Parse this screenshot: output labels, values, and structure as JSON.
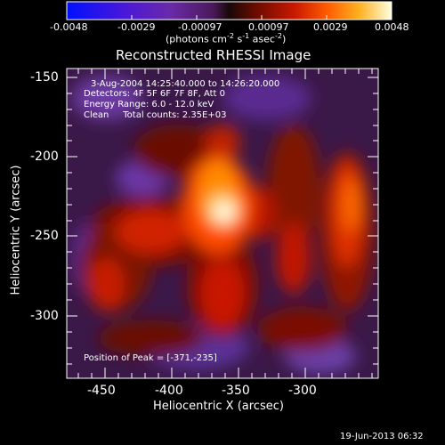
{
  "colorbar": {
    "ticks": [
      "-0.0048",
      "-0.0029",
      "-0.00097",
      "0.00097",
      "0.0029",
      "0.0048"
    ],
    "units_pre": "(photons cm",
    "units_exp1": "-2",
    "units_mid": " s",
    "units_exp2": "-1",
    "units_mid2": " asec",
    "units_exp3": "-2",
    "units_post": ")"
  },
  "title": "Reconstructed RHESSI Image",
  "info": {
    "time": "3-Aug-2004 14:25:40.000 to 14:26:20.000",
    "detectors": "Detectors: 4F 5F 6F 7F 8F, Att 0",
    "energy": "Energy Range: 6.0 - 12.0 keV",
    "clean": "Clean     Total counts: 2.35E+03",
    "peak": "Position of Peak = [-371,-235]"
  },
  "axes": {
    "xlabel": "Heliocentric X (arcsec)",
    "ylabel": "Heliocentric Y (arcsec)",
    "xticks": [
      "-450",
      "-400",
      "-350",
      "-300"
    ],
    "yticks": [
      "-150",
      "-200",
      "-250",
      "-300"
    ]
  },
  "footer": {
    "date": "19-Jun-2013 06:32"
  }
}
